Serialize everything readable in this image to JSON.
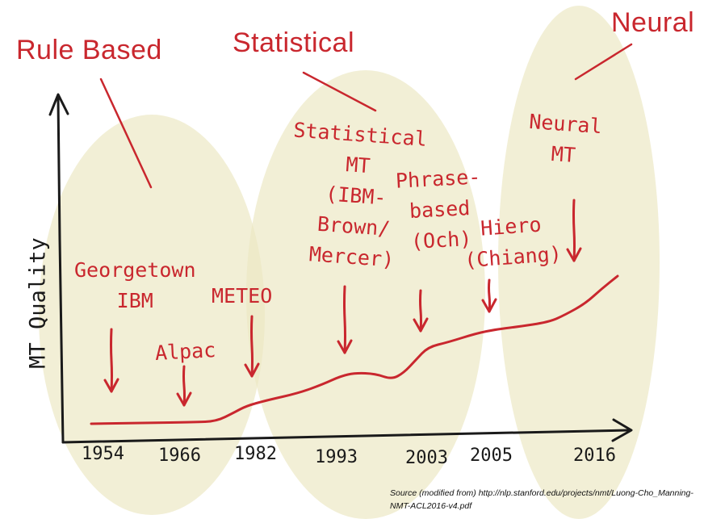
{
  "colors": {
    "accent": "#c9272e",
    "ink": "#1a1a1a",
    "highlight": "#ece8c2"
  },
  "chart_data": {
    "type": "line",
    "x": [
      1954,
      1966,
      1982,
      1993,
      2003,
      2005,
      2016
    ],
    "tick_labels": [
      "1954",
      "1966",
      "1982",
      "1993",
      "2003",
      "2005",
      "2016"
    ],
    "ylabel": "MT Quality",
    "xlabel": "",
    "title": "",
    "axis_arrows": true,
    "grid": false,
    "eras": [
      {
        "name": "Rule Based"
      },
      {
        "name": "Statistical"
      },
      {
        "name": "Neural"
      }
    ],
    "milestones": [
      {
        "lines": [
          "Georgetown",
          "IBM"
        ],
        "year": 1954
      },
      {
        "lines": [
          "Alpac"
        ],
        "year": 1966
      },
      {
        "lines": [
          "METEO"
        ],
        "year": 1982
      },
      {
        "lines": [
          "Statistical",
          "MT",
          "(IBM-",
          "Brown/",
          "Mercer)"
        ],
        "year": 1993
      },
      {
        "lines": [
          "Phrase-",
          "based",
          "(Och)"
        ],
        "year": 2003
      },
      {
        "lines": [
          "Hiero",
          "(Chiang)"
        ],
        "year": 2005
      },
      {
        "lines": [
          "Neural",
          "MT"
        ],
        "year": 2016
      }
    ]
  },
  "source_note": "Source (modified from) http://nlp.stanford.edu/projects/nmt/Luong-Cho_Manning-NMT-ACL2016-v4.pdf"
}
